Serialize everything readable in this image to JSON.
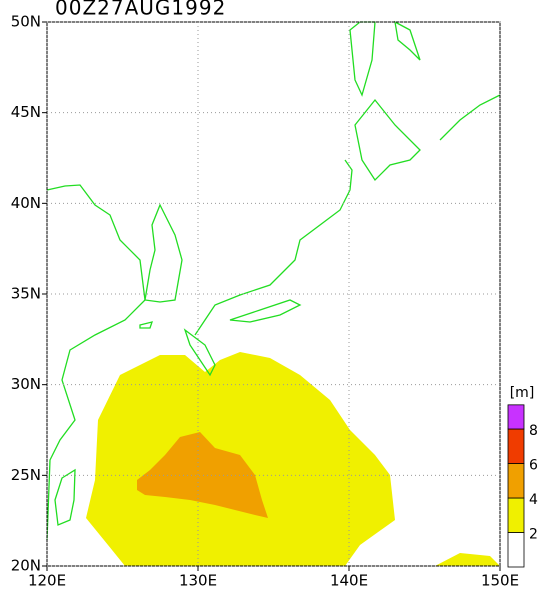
{
  "title": "00Z27AUG1992",
  "map": {
    "lon_range": [
      120,
      150
    ],
    "lat_range": [
      20,
      50
    ],
    "lon_ticks": [
      {
        "value": 120,
        "label": "120E"
      },
      {
        "value": 130,
        "label": "130E"
      },
      {
        "value": 140,
        "label": "140E"
      },
      {
        "value": 150,
        "label": "150E"
      }
    ],
    "lat_ticks": [
      {
        "value": 20,
        "label": "20N"
      },
      {
        "value": 25,
        "label": "25N"
      },
      {
        "value": 30,
        "label": "30N"
      },
      {
        "value": 35,
        "label": "35N"
      },
      {
        "value": 40,
        "label": "40N"
      },
      {
        "value": 45,
        "label": "45N"
      },
      {
        "value": 50,
        "label": "50N"
      }
    ],
    "grid": true
  },
  "colorbar": {
    "unit": "[m]",
    "levels": [
      2,
      4,
      6,
      8
    ],
    "colors": [
      "#ffffff",
      "#f0f000",
      "#f0a000",
      "#f03c00",
      "#c832ff"
    ]
  }
}
